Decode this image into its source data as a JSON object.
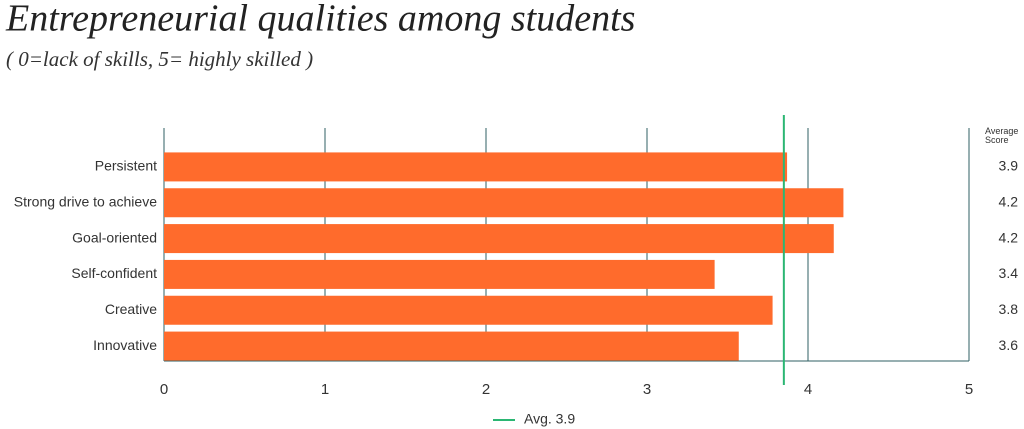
{
  "chart_data": {
    "type": "hbar",
    "title": "Entrepreneurial qualities among students",
    "subtitle": "( 0=lack of skills, 5= highly skilled )",
    "categories": [
      "Persistent",
      "Strong drive to achieve",
      "Goal-oriented",
      "Self-confident",
      "Creative",
      "Innovative"
    ],
    "values": [
      3.87,
      4.22,
      4.16,
      3.42,
      3.78,
      3.57
    ],
    "value_labels": [
      "3.9",
      "4.2",
      "4.2",
      "3.4",
      "3.8",
      "3.6"
    ],
    "value_labels_title": "Average Score",
    "color": "#ff6b2c",
    "xlim": [
      0,
      5
    ],
    "xticks": [
      0,
      1,
      2,
      3,
      4,
      5
    ],
    "grid": true,
    "reference_line": {
      "value": 3.85,
      "label": "Avg. 3.9",
      "color": "#2bb673"
    }
  }
}
